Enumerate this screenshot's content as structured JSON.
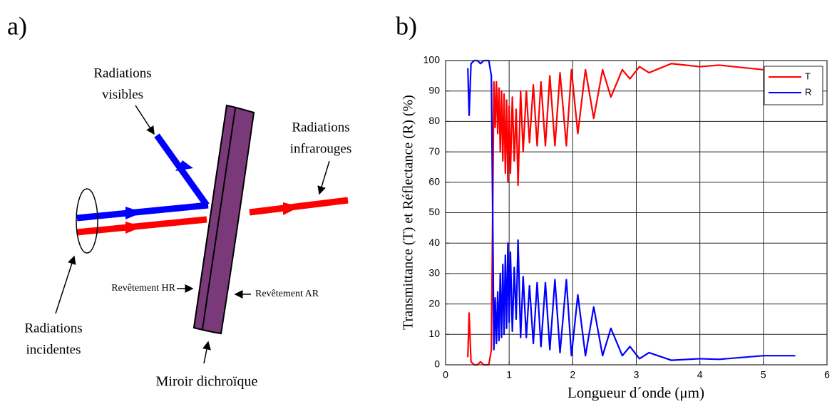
{
  "diagram": {
    "panel_label": "a)",
    "visible_label": [
      "Radiations",
      "visibles"
    ],
    "infrared_label": [
      "Radiations",
      "infrarouges"
    ],
    "incident_label": [
      "Radiations",
      "incidentes"
    ],
    "hr_coating": "Revêtement HR",
    "ar_coating": "Revêtement AR",
    "mirror_label": "Miroir dichroïque"
  },
  "chart_data": {
    "type": "line",
    "panel_label": "b)",
    "x_label": "Longueur d´onde (μm)",
    "y_label": "Transmittance (T) et Réflectance (R) (%)",
    "x": [
      0.35,
      0.37,
      0.4,
      0.45,
      0.5,
      0.55,
      0.6,
      0.68,
      0.72,
      0.74,
      0.76,
      0.78,
      0.8,
      0.82,
      0.84,
      0.86,
      0.88,
      0.9,
      0.92,
      0.94,
      0.96,
      0.98,
      1.0,
      1.02,
      1.05,
      1.08,
      1.11,
      1.14,
      1.18,
      1.22,
      1.27,
      1.32,
      1.38,
      1.44,
      1.5,
      1.57,
      1.64,
      1.72,
      1.8,
      1.9,
      1.98,
      2.08,
      2.2,
      2.33,
      2.47,
      2.6,
      2.78,
      2.9,
      3.05,
      3.2,
      3.55,
      4.0,
      4.3,
      5.0,
      5.5
    ],
    "series": [
      {
        "name": "T",
        "color": "#ff0000",
        "values": [
          2.5,
          17,
          1,
          0,
          0,
          1,
          0,
          0,
          5,
          48,
          93,
          78,
          93,
          76,
          91,
          70,
          90,
          67,
          89,
          63,
          87,
          60,
          85,
          63,
          88,
          67,
          84,
          59,
          90,
          70,
          90,
          73,
          92,
          72,
          93,
          72,
          95,
          72,
          96,
          72,
          97,
          76,
          97,
          81,
          97,
          88,
          97,
          94,
          98,
          96,
          99,
          98,
          98.5,
          97,
          97
        ]
      },
      {
        "name": "R",
        "color": "#0000ff",
        "values": [
          97.5,
          82,
          99,
          100,
          100,
          99,
          100,
          100,
          95,
          52,
          5,
          22,
          7,
          24,
          8,
          30,
          9,
          33,
          10,
          36,
          12,
          40,
          14,
          37,
          11,
          32,
          15,
          41,
          9,
          29,
          9,
          26,
          7,
          27,
          6,
          27,
          5,
          28,
          4,
          28,
          3,
          23,
          3,
          19,
          3,
          12,
          3,
          6,
          2,
          4,
          1.5,
          2,
          1.8,
          3,
          3
        ]
      }
    ],
    "xlim": [
      0,
      6
    ],
    "xticks": [
      0,
      1,
      2,
      3,
      4,
      5,
      6
    ],
    "ylim": [
      0,
      100
    ],
    "yticks": [
      0,
      10,
      20,
      30,
      40,
      50,
      60,
      70,
      80,
      90,
      100
    ],
    "grid": true,
    "legend": "upper right"
  }
}
